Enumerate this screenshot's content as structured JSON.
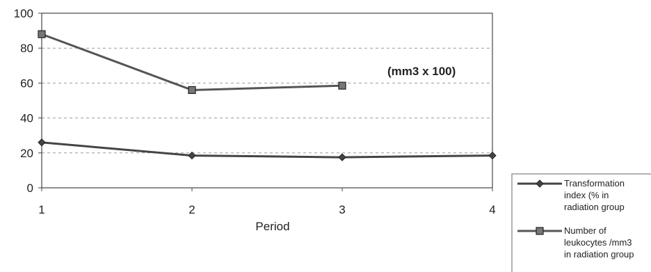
{
  "chart_data": {
    "type": "line",
    "title": "",
    "xlabel": "Period",
    "ylabel": "",
    "x": [
      1,
      2,
      3,
      4
    ],
    "xlim": [
      1,
      4
    ],
    "ylim": [
      0,
      100
    ],
    "yticks": [
      0,
      20,
      40,
      60,
      80,
      100
    ],
    "xticks": [
      1,
      2,
      3,
      4
    ],
    "grid": "horizontal dashed",
    "legend_position": "bottom-right",
    "annotation": "(mm3 x 100)",
    "series": [
      {
        "name": "Transformation index (% in radiation group",
        "name_lines": [
          "Transformation",
          "index (% in",
          "radiation group"
        ],
        "marker": "diamond",
        "color": "#444444",
        "x": [
          1,
          2,
          3,
          4
        ],
        "values": [
          26,
          18.5,
          17.5,
          18.5
        ]
      },
      {
        "name": "Number of leukocytes /mm3 in radiation group",
        "name_lines": [
          "Number of",
          "leukocytes /mm3",
          "in radiation group"
        ],
        "marker": "square",
        "color": "#555555",
        "x": [
          1,
          2,
          3
        ],
        "values": [
          88,
          56,
          58.5
        ]
      }
    ]
  }
}
